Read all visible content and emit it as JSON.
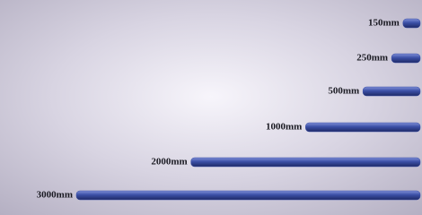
{
  "chart_data": {
    "type": "bar",
    "orientation": "horizontal",
    "values": [
      150,
      250,
      500,
      1000,
      2000,
      3000
    ],
    "value_labels": [
      "150mm",
      "250mm",
      "500mm",
      "1000mm",
      "2000mm",
      "3000mm"
    ],
    "color": "#3b4fa6"
  }
}
